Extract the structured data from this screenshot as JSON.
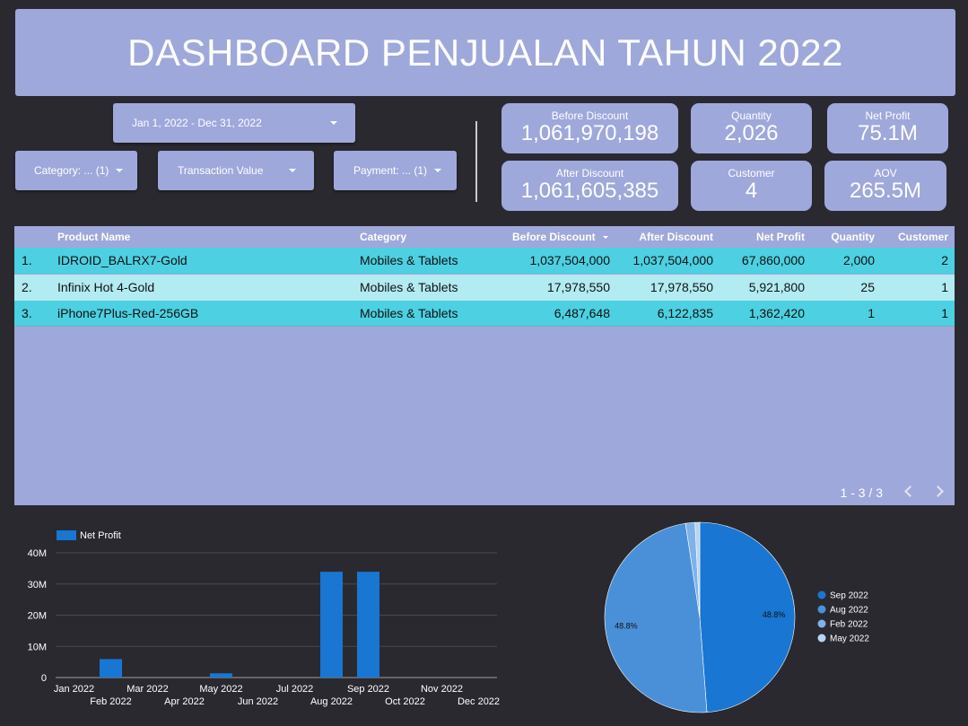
{
  "title": "DASHBOARD PENJUALAN TAHUN 2022",
  "filters": {
    "date_range": "Jan 1, 2022 - Dec 31, 2022",
    "category": "Category: ... (1)",
    "transaction_value": "Transaction Value",
    "payment": "Payment: ... (1)"
  },
  "kpis": {
    "before_discount": {
      "label": "Before Discount",
      "value": "1,061,970,198"
    },
    "after_discount": {
      "label": "After Discount",
      "value": "1,061,605,385"
    },
    "quantity": {
      "label": "Quantity",
      "value": "2,026"
    },
    "customer": {
      "label": "Customer",
      "value": "4"
    },
    "net_profit": {
      "label": "Net Profit",
      "value": "75.1M"
    },
    "aov": {
      "label": "AOV",
      "value": "265.5M"
    }
  },
  "table": {
    "columns": [
      "Product Name",
      "Category",
      "Before Discount",
      "After Discount",
      "Net Profit",
      "Quantity",
      "Customer"
    ],
    "rows": [
      {
        "index": "1.",
        "product": "IDROID_BALRX7-Gold",
        "category": "Mobiles & Tablets",
        "before": "1,037,504,000",
        "after": "1,037,504,000",
        "profit": "67,860,000",
        "qty": "2,000",
        "customer": "2"
      },
      {
        "index": "2.",
        "product": "Infinix Hot 4-Gold",
        "category": "Mobiles & Tablets",
        "before": "17,978,550",
        "after": "17,978,550",
        "profit": "5,921,800",
        "qty": "25",
        "customer": "1"
      },
      {
        "index": "3.",
        "product": "iPhone7Plus-Red-256GB",
        "category": "Mobiles & Tablets",
        "before": "6,487,648",
        "after": "6,122,835",
        "profit": "1,362,420",
        "qty": "1",
        "customer": "1"
      }
    ],
    "pagination": "1 - 3 / 3"
  },
  "colors": {
    "panel": "#9fa8da",
    "background": "#2a2930",
    "row_a": "#4dd0e1",
    "row_b": "#b2ebf2",
    "bar": "#1976d2"
  },
  "chart_data": [
    {
      "type": "bar",
      "categories": [
        "Jan 2022",
        "Feb 2022",
        "Mar 2022",
        "Apr 2022",
        "May 2022",
        "Jun 2022",
        "Jul 2022",
        "Aug 2022",
        "Sep 2022",
        "Oct 2022",
        "Nov 2022",
        "Dec 2022"
      ],
      "series": [
        {
          "name": "Net Profit",
          "values": [
            0,
            5921800,
            0,
            0,
            1362420,
            0,
            0,
            33930000,
            33930000,
            0,
            0,
            0
          ]
        }
      ],
      "y_ticks": [
        "0",
        "10M",
        "20M",
        "30M",
        "40M"
      ],
      "ylim": [
        0,
        40000000
      ],
      "grid": true,
      "legend": "top-left"
    },
    {
      "type": "pie",
      "labels": [
        "Sep 2022",
        "Aug 2022",
        "Feb 2022",
        "May 2022"
      ],
      "values": [
        48.8,
        48.8,
        1.6,
        0.8
      ],
      "data_labels": [
        "48.8%",
        "48.8%",
        "",
        ""
      ],
      "colors": [
        "#1976d2",
        "#4a90d9",
        "#7fb2e8",
        "#b7d4f2"
      ],
      "legend": "right"
    }
  ]
}
